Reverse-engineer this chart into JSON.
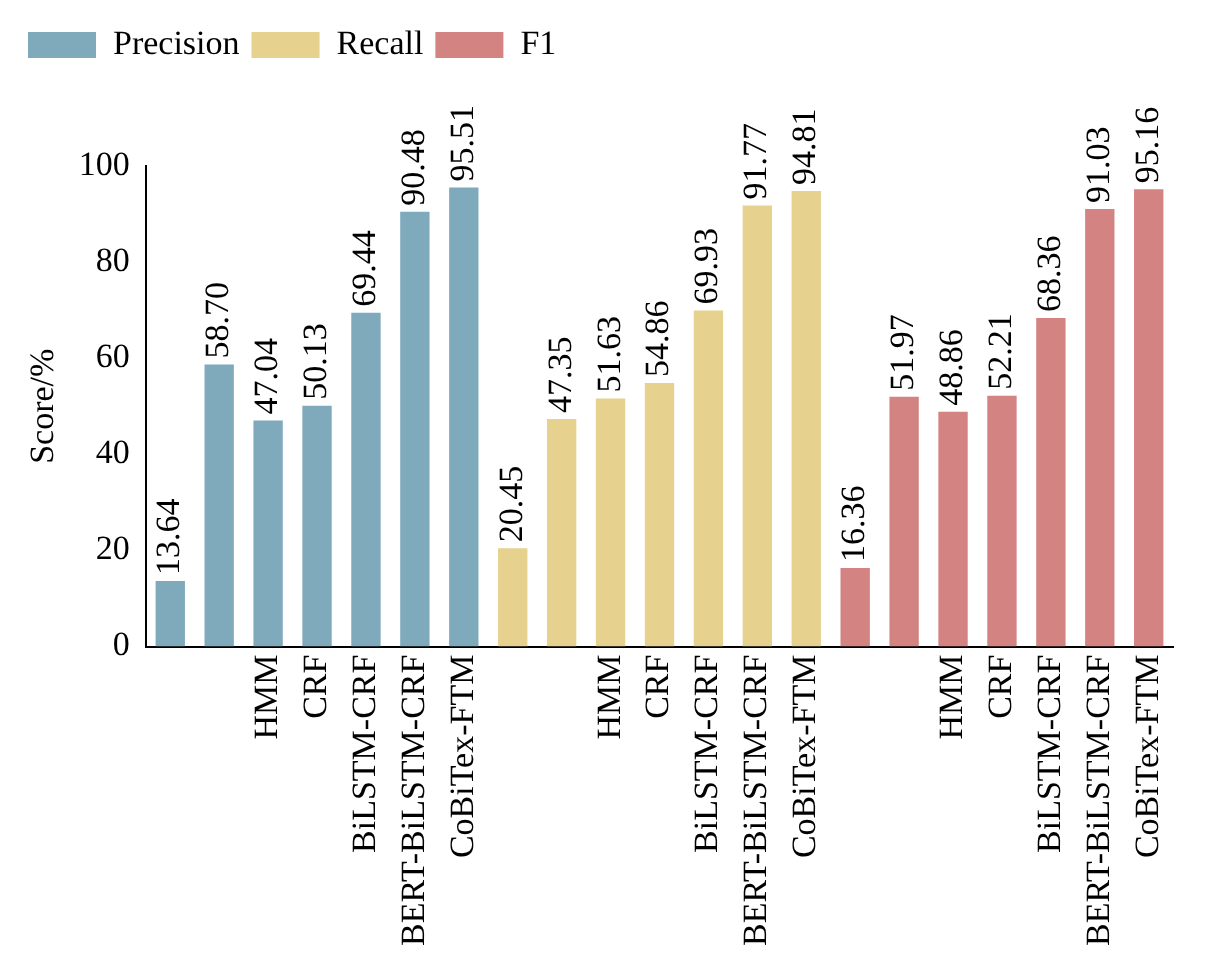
{
  "chart_data": {
    "type": "bar",
    "ylabel": "Score/%",
    "ylim": [
      0,
      100
    ],
    "yticks": [
      0,
      20,
      40,
      60,
      80,
      100
    ],
    "grid": false,
    "legend": "top left",
    "categories": [
      null,
      null,
      "HMM",
      "CRF",
      "BiLSTM-CRF",
      "BERT-BiLSTM-CRF",
      "CoBiTex-FTM",
      null,
      null,
      "HMM",
      "CRF",
      "BiLSTM-CRF",
      "BERT-BiLSTM-CRF",
      "CoBiTex-FTM",
      null,
      null,
      "HMM",
      "CRF",
      "BiLSTM-CRF",
      "BERT-BiLSTM-CRF",
      "CoBiTex-FTM"
    ],
    "series": [
      {
        "name": "Precision",
        "color": "#7faabc",
        "values": [
          13.64,
          58.7,
          47.04,
          50.13,
          69.44,
          90.48,
          95.51,
          null,
          null,
          null,
          null,
          null,
          null,
          null,
          null,
          null,
          null,
          null,
          null,
          null,
          null
        ],
        "value_labels": [
          "13.64",
          "58.70",
          "47.04",
          "50.13",
          "69.44",
          "90.48",
          "95.51",
          null,
          null,
          null,
          null,
          null,
          null,
          null,
          null,
          null,
          null,
          null,
          null,
          null,
          null
        ]
      },
      {
        "name": "Recall",
        "color": "#e6d18e",
        "values": [
          null,
          null,
          null,
          null,
          null,
          null,
          null,
          20.45,
          47.35,
          51.63,
          54.86,
          69.93,
          91.77,
          94.81,
          null,
          null,
          null,
          null,
          null,
          null,
          null
        ],
        "value_labels": [
          null,
          null,
          null,
          null,
          null,
          null,
          null,
          "20.45",
          "47.35",
          "51.63",
          "54.86",
          "69.93",
          "91.77",
          "94.81",
          null,
          null,
          null,
          null,
          null,
          null,
          null
        ]
      },
      {
        "name": "F1",
        "color": "#d48383",
        "values": [
          null,
          null,
          null,
          null,
          null,
          null,
          null,
          null,
          null,
          null,
          null,
          null,
          null,
          null,
          16.36,
          51.97,
          48.86,
          52.21,
          68.36,
          91.03,
          95.16
        ],
        "value_labels": [
          null,
          null,
          null,
          null,
          null,
          null,
          null,
          null,
          null,
          null,
          null,
          null,
          null,
          null,
          "16.36",
          "51.97",
          "48.86",
          "52.21",
          "68.36",
          "91.03",
          "95.16"
        ]
      }
    ]
  }
}
